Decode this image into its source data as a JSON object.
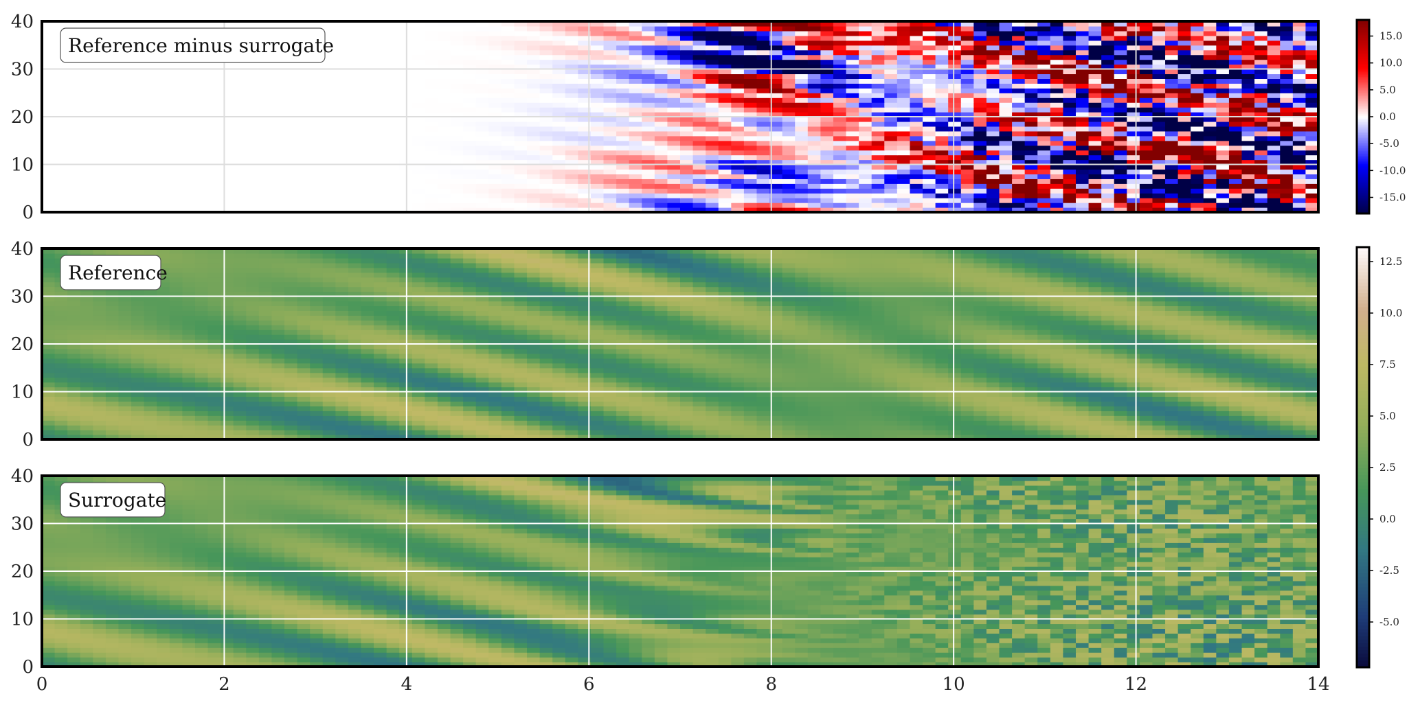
{
  "chart_data": [
    {
      "type": "heatmap",
      "panel_label": "Reference minus surrogate",
      "xlim": [
        0,
        14
      ],
      "ylim": [
        0,
        40
      ],
      "x_ticks": [
        "0",
        "2",
        "4",
        "6",
        "8",
        "10",
        "12",
        "14"
      ],
      "y_ticks": [
        "0",
        "10",
        "20",
        "30",
        "40"
      ],
      "grid": true,
      "colormap": "seismic",
      "colorbar": {
        "range": [
          -18,
          18
        ],
        "ticks": [
          "15.0",
          "10.0",
          "5.0",
          "0.0",
          "-5.0",
          "-10.0",
          "-15.0"
        ]
      },
      "description_of_values": "near zero for x < 4, growing to about ±15 by x ≈ 8 and beyond"
    },
    {
      "type": "heatmap",
      "panel_label": "Reference",
      "xlim": [
        0,
        14
      ],
      "ylim": [
        0,
        40
      ],
      "x_ticks": [
        "0",
        "2",
        "4",
        "6",
        "8",
        "10",
        "12",
        "14"
      ],
      "y_ticks": [
        "0",
        "10",
        "20",
        "30",
        "40"
      ],
      "grid": true,
      "colormap": "gist_earth",
      "colorbar": {
        "range": [
          -7.2,
          13.2
        ],
        "ticks": [
          "12.5",
          "10.0",
          "7.5",
          "5.0",
          "2.5",
          "0.0",
          "-2.5",
          "-5.0"
        ]
      }
    },
    {
      "type": "heatmap",
      "panel_label": "Surrogate",
      "xlim": [
        0,
        14
      ],
      "ylim": [
        0,
        40
      ],
      "x_ticks": [
        "0",
        "2",
        "4",
        "6",
        "8",
        "10",
        "12",
        "14"
      ],
      "y_ticks": [
        "0",
        "10",
        "20",
        "30",
        "40"
      ],
      "grid": true,
      "colormap": "gist_earth",
      "colorbar": "shared with Reference"
    }
  ]
}
